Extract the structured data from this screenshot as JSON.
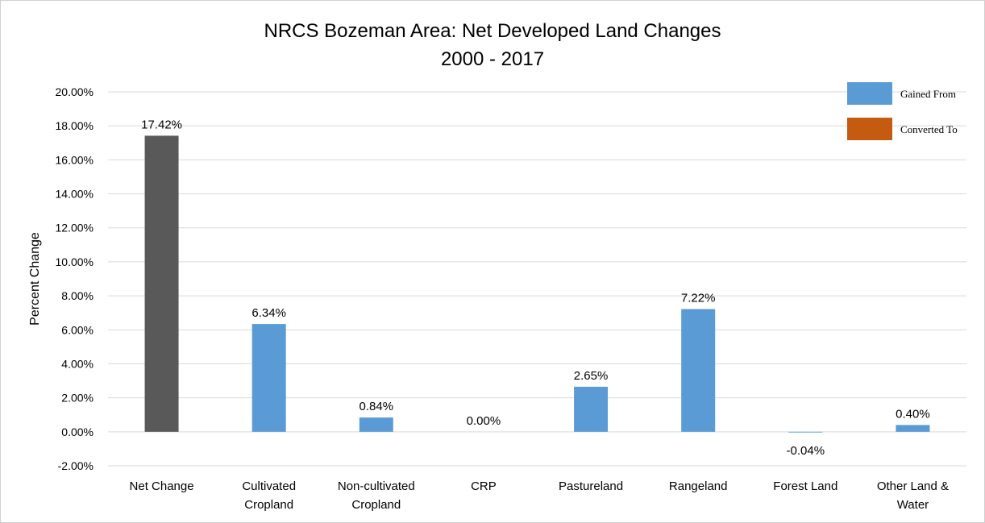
{
  "chart_data": {
    "type": "bar",
    "title": "NRCS Bozeman Area: Net Developed Land Changes",
    "subtitle": "2000 - 2017",
    "ylabel": "Percent Change",
    "xlabel": "",
    "ylim": [
      -2,
      20
    ],
    "ytick_step": 2,
    "ytick_labels": [
      "-2.00%",
      "0.00%",
      "2.00%",
      "4.00%",
      "6.00%",
      "8.00%",
      "10.00%",
      "12.00%",
      "14.00%",
      "16.00%",
      "18.00%",
      "20.00%"
    ],
    "grid": true,
    "legend_position": "top-right",
    "legend": [
      {
        "name": "Gained From",
        "color": "#5B9BD5"
      },
      {
        "name": "Converted To",
        "color": "#C55A11"
      }
    ],
    "categories": [
      [
        "Net Change"
      ],
      [
        "Cultivated",
        "Cropland"
      ],
      [
        "Non-cultivated",
        "Cropland"
      ],
      [
        "CRP"
      ],
      [
        "Pastureland"
      ],
      [
        "Rangeland"
      ],
      [
        "Forest Land"
      ],
      [
        "Other Land &",
        "Water"
      ]
    ],
    "values": [
      17.42,
      6.34,
      0.84,
      0.0,
      2.65,
      7.22,
      -0.04,
      0.4
    ],
    "data_labels": [
      "17.42%",
      "6.34%",
      "0.84%",
      "0.00%",
      "2.65%",
      "7.22%",
      "-0.04%",
      "0.40%"
    ],
    "bar_colors": [
      "#595959",
      "#5B9BD5",
      "#5B9BD5",
      "#5B9BD5",
      "#5B9BD5",
      "#5B9BD5",
      "#5B9BD5",
      "#5B9BD5"
    ],
    "gridline_color": "#D9D9D9"
  }
}
